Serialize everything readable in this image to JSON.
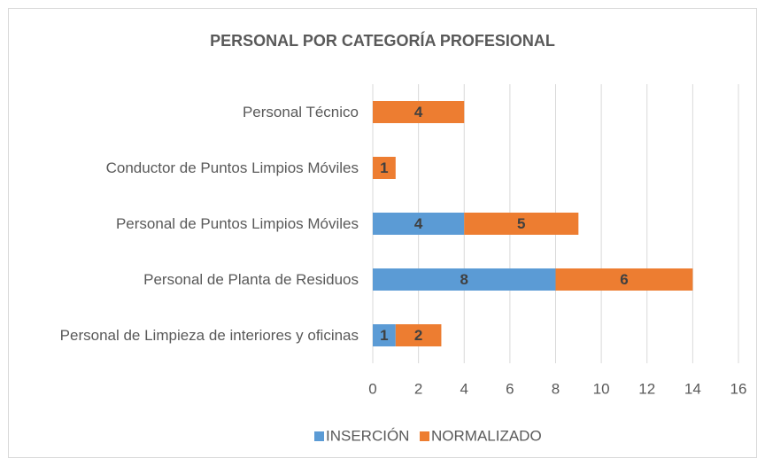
{
  "chart_data": {
    "type": "bar",
    "orientation": "horizontal",
    "stacked": true,
    "title": "PERSONAL  POR CATEGORÍA PROFESIONAL",
    "categories": [
      "Personal Técnico",
      "Conductor de Puntos Limpios Móviles",
      "Personal de Puntos Limpios Móviles",
      "Personal de Planta de Residuos",
      "Personal de Limpieza de interiores y oficinas"
    ],
    "series": [
      {
        "name": "INSERCIÓN",
        "color": "#5b9bd5",
        "values": [
          null,
          null,
          4,
          8,
          1
        ]
      },
      {
        "name": "NORMALIZADO",
        "color": "#ed7d31",
        "values": [
          4,
          1,
          5,
          6,
          2
        ]
      }
    ],
    "xlim": [
      0,
      16
    ],
    "xticks": [
      0,
      2,
      4,
      6,
      8,
      10,
      12,
      14,
      16
    ],
    "grid": true,
    "legend": "bottom"
  }
}
